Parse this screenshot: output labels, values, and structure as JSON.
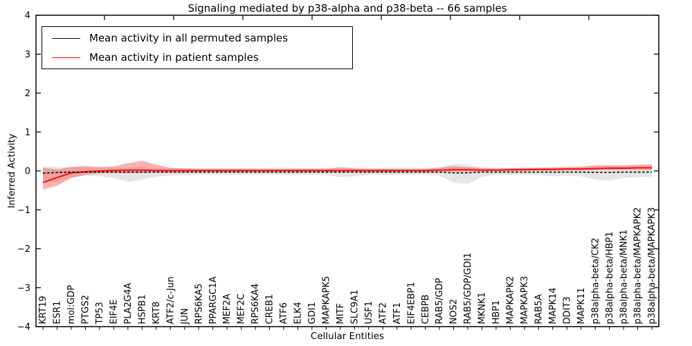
{
  "title": "Signaling mediated by p38-alpha and p38-beta -- 66 samples",
  "axes": {
    "xlabel": "Cellular Entities",
    "ylabel": "Inferred Activity",
    "ytick_labels": [
      "4",
      "3",
      "2",
      "1",
      "0",
      "−1",
      "−2",
      "−3",
      "−4"
    ]
  },
  "legend": [
    {
      "label": "Mean activity in all permuted samples",
      "color": "#000000"
    },
    {
      "label": "Mean activity in patient samples",
      "color": "#ff0000"
    }
  ],
  "chart_data": {
    "type": "line",
    "title": "Signaling mediated by p38-alpha and p38-beta -- 66 samples",
    "xlabel": "Cellular Entities",
    "ylabel": "Inferred Activity",
    "ylim": [
      -4,
      4
    ],
    "yticks": [
      4,
      3,
      2,
      1,
      0,
      -1,
      -2,
      -3,
      -4
    ],
    "grid": false,
    "legend_position": "upper left",
    "categories": [
      "KRT19",
      "ESR1",
      "mol:GDP",
      "PTGS2",
      "TP53",
      "EIF4E",
      "PLA2G4A",
      "HSPB1",
      "KRT8",
      "ATF2/c-Jun",
      "JUN",
      "RPS6KA5",
      "PPARGC1A",
      "MEF2A",
      "MEF2C",
      "RPS6KA4",
      "CREB1",
      "ATF6",
      "ELK4",
      "GDI1",
      "MAPKAPK5",
      "MITF",
      "SLC9A1",
      "USF1",
      "ATF2",
      "ATF1",
      "EIF4EBP1",
      "CEBPB",
      "RAB5/GDP",
      "NOS2",
      "RAB5/GDP/GDI1",
      "MKNK1",
      "HBP1",
      "MAPKAPK2",
      "MAPKAPK3",
      "RAB5A",
      "MAPK14",
      "DDIT3",
      "MAPK11",
      "p38alpha-beta/CK2",
      "p38alpha-beta/HBP1",
      "p38alpha-beta/MNK1",
      "p38alpha-beta/MAPKAPK2",
      "p38alpha-beta/MAPKAPK3"
    ],
    "series": [
      {
        "name": "Mean activity in all permuted samples",
        "color": "#000000",
        "line_style": "dashed",
        "band_color": "rgba(0,0,0,0.10)",
        "values": [
          -0.06,
          -0.04,
          -0.03,
          -0.03,
          -0.03,
          -0.03,
          -0.03,
          -0.03,
          -0.03,
          -0.03,
          -0.03,
          -0.03,
          -0.03,
          -0.03,
          -0.03,
          -0.03,
          -0.03,
          -0.03,
          -0.03,
          -0.03,
          -0.03,
          -0.03,
          -0.03,
          -0.03,
          -0.03,
          -0.03,
          -0.03,
          -0.03,
          -0.03,
          -0.05,
          -0.05,
          -0.03,
          -0.03,
          -0.03,
          -0.03,
          -0.03,
          -0.03,
          -0.03,
          -0.03,
          -0.04,
          -0.04,
          -0.03,
          -0.03,
          -0.03
        ],
        "band_upper": [
          0.12,
          0.1,
          0.1,
          0.09,
          0.08,
          0.08,
          0.09,
          0.1,
          0.08,
          0.08,
          0.08,
          0.08,
          0.08,
          0.08,
          0.08,
          0.08,
          0.08,
          0.08,
          0.08,
          0.08,
          0.08,
          0.1,
          0.09,
          0.08,
          0.08,
          0.08,
          0.08,
          0.08,
          0.1,
          0.18,
          0.16,
          0.1,
          0.08,
          0.08,
          0.08,
          0.08,
          0.09,
          0.09,
          0.1,
          0.16,
          0.14,
          0.13,
          0.13,
          0.15
        ],
        "band_lower": [
          -0.25,
          -0.28,
          -0.18,
          -0.12,
          -0.14,
          -0.18,
          -0.28,
          -0.22,
          -0.15,
          -0.12,
          -0.1,
          -0.1,
          -0.1,
          -0.1,
          -0.1,
          -0.1,
          -0.1,
          -0.1,
          -0.1,
          -0.1,
          -0.1,
          -0.16,
          -0.14,
          -0.1,
          -0.1,
          -0.1,
          -0.1,
          -0.1,
          -0.12,
          -0.3,
          -0.33,
          -0.15,
          -0.1,
          -0.1,
          -0.1,
          -0.1,
          -0.14,
          -0.12,
          -0.14,
          -0.22,
          -0.25,
          -0.18,
          -0.16,
          -0.15
        ]
      },
      {
        "name": "Mean activity in patient samples",
        "color": "#ff0000",
        "line_style": "solid",
        "band_color": "rgba(255,0,0,0.30)",
        "values": [
          -0.3,
          -0.17,
          -0.05,
          -0.02,
          0.0,
          0.01,
          0.02,
          0.02,
          0.01,
          0.01,
          0.01,
          0.01,
          0.01,
          0.01,
          0.01,
          0.01,
          0.01,
          0.01,
          0.01,
          0.01,
          0.01,
          0.01,
          0.01,
          0.01,
          0.01,
          0.01,
          0.01,
          0.01,
          0.02,
          0.03,
          0.03,
          0.02,
          0.02,
          0.03,
          0.03,
          0.04,
          0.04,
          0.05,
          0.05,
          0.06,
          0.07,
          0.07,
          0.08,
          0.08
        ],
        "band_upper": [
          0.08,
          0.04,
          0.1,
          0.13,
          0.1,
          0.12,
          0.2,
          0.26,
          0.16,
          0.08,
          0.06,
          0.05,
          0.05,
          0.05,
          0.05,
          0.05,
          0.05,
          0.05,
          0.05,
          0.05,
          0.05,
          0.09,
          0.06,
          0.05,
          0.05,
          0.05,
          0.05,
          0.05,
          0.08,
          0.12,
          0.1,
          0.07,
          0.06,
          0.07,
          0.08,
          0.08,
          0.09,
          0.1,
          0.11,
          0.13,
          0.14,
          0.15,
          0.16,
          0.17
        ],
        "band_lower": [
          -0.48,
          -0.38,
          -0.18,
          -0.1,
          -0.06,
          -0.05,
          -0.06,
          -0.05,
          -0.04,
          -0.04,
          -0.04,
          -0.03,
          -0.03,
          -0.03,
          -0.03,
          -0.03,
          -0.03,
          -0.03,
          -0.03,
          -0.03,
          -0.03,
          -0.03,
          -0.03,
          -0.03,
          -0.03,
          -0.03,
          -0.03,
          -0.03,
          -0.02,
          -0.02,
          -0.02,
          -0.02,
          -0.01,
          -0.01,
          0.0,
          0.0,
          0.0,
          0.01,
          0.01,
          0.02,
          0.02,
          0.03,
          0.03,
          0.02
        ]
      }
    ]
  }
}
